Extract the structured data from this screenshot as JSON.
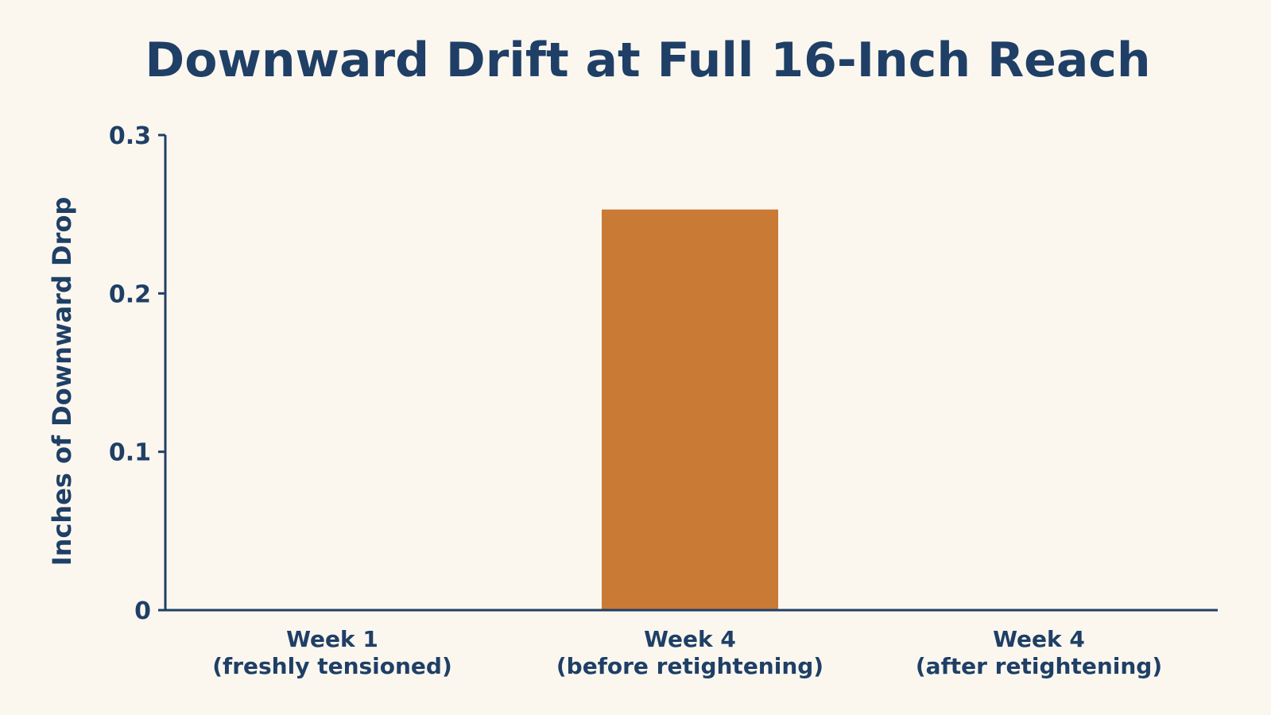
{
  "colors": {
    "background": "#fbf7ef",
    "text": "#1f3f66",
    "axis": "#1f3f66",
    "bar": "#c97a35"
  },
  "chart_data": {
    "type": "bar",
    "title": "Downward Drift at Full 16-Inch Reach",
    "xlabel": "",
    "ylabel": "Inches of Downward Drop",
    "categories": [
      {
        "line1": "Week 1",
        "line2": "(freshly tensioned)"
      },
      {
        "line1": "Week 4",
        "line2": "(before retightening)"
      },
      {
        "line1": "Week 4",
        "line2": "(after retightening)"
      }
    ],
    "values": [
      0,
      0.253,
      0
    ],
    "ylim": [
      0,
      0.3
    ],
    "yticks": [
      "0",
      "0.1",
      "0.2",
      "0.3"
    ],
    "grid": false,
    "legend": "none"
  }
}
